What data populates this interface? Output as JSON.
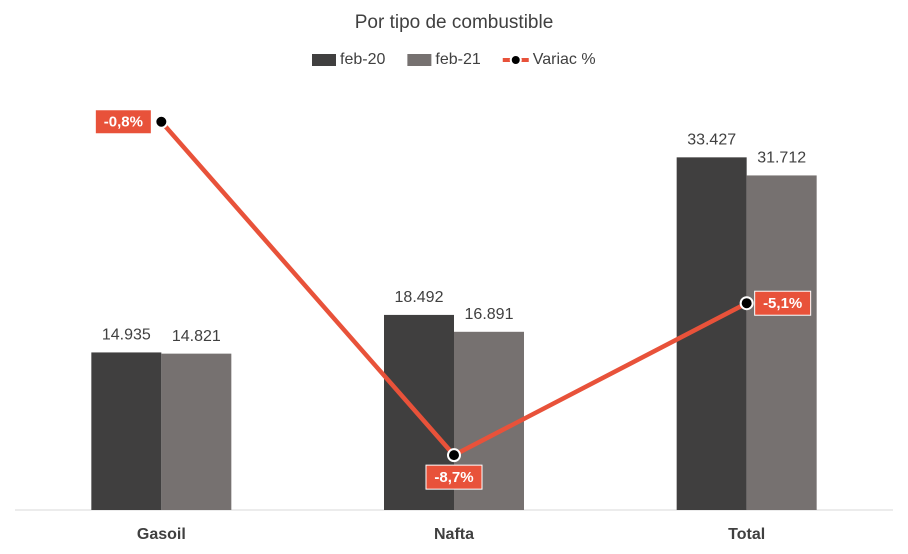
{
  "chart_data": {
    "type": "bar",
    "title": "Por tipo de combustible",
    "categories": [
      "Gasoil",
      "Nafta",
      "Total"
    ],
    "series": [
      {
        "name": "feb-20",
        "color": "#403f3f",
        "values": [
          14935,
          18492,
          33427
        ],
        "value_labels": [
          "14.935",
          "18.492",
          "33.427"
        ]
      },
      {
        "name": "feb-21",
        "color": "#767170",
        "values": [
          14821,
          16891,
          31712
        ],
        "value_labels": [
          "14.821",
          "16.891",
          "31.712"
        ]
      },
      {
        "name": "Variac %",
        "type": "line",
        "axis": "y2",
        "color": "#e8523a",
        "values": [
          -0.8,
          -8.7,
          -5.1
        ],
        "value_labels": [
          "-0,8%",
          "-8,7%",
          "-5,1%"
        ]
      }
    ],
    "ylim": [
      0,
      40000
    ],
    "y2lim": [
      -10,
      0
    ]
  }
}
